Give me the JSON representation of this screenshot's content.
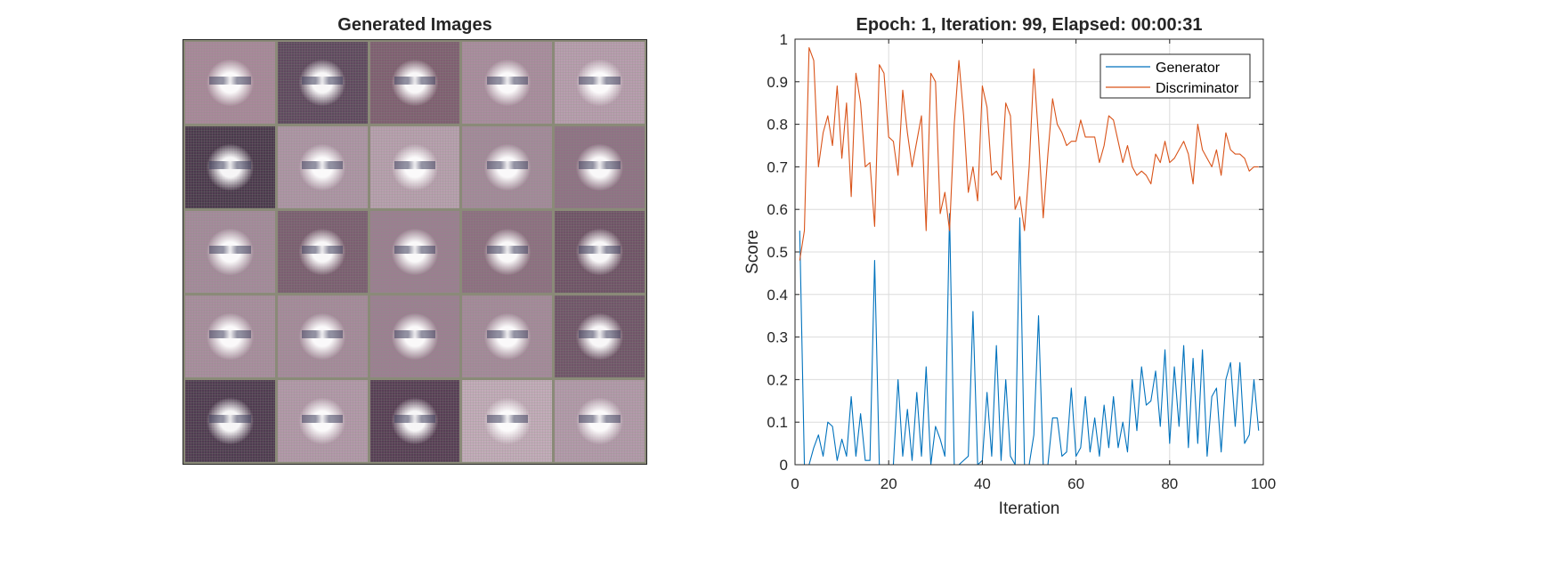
{
  "left_panel": {
    "title": "Generated Images",
    "tiles": [
      {
        "tint": "#a88a9a",
        "face": "light"
      },
      {
        "tint": "#5e4a5e",
        "face": "bright"
      },
      {
        "tint": "#7e6070",
        "face": "bright"
      },
      {
        "tint": "#a98e9e",
        "face": "light"
      },
      {
        "tint": "#b79fae",
        "face": "light"
      },
      {
        "tint": "#4a3a4c",
        "face": "bright"
      },
      {
        "tint": "#ad96a5",
        "face": "light"
      },
      {
        "tint": "#b7a1ae",
        "face": "light"
      },
      {
        "tint": "#a38b9a",
        "face": "light"
      },
      {
        "tint": "#8e7384",
        "face": "light"
      },
      {
        "tint": "#a48c9b",
        "face": "light"
      },
      {
        "tint": "#7a5f70",
        "face": "light"
      },
      {
        "tint": "#9a8090",
        "face": "light"
      },
      {
        "tint": "#8c7080",
        "face": "light"
      },
      {
        "tint": "#6e5466",
        "face": "bright"
      },
      {
        "tint": "#a88f9e",
        "face": "light"
      },
      {
        "tint": "#a58c9b",
        "face": "light"
      },
      {
        "tint": "#9b8191",
        "face": "light"
      },
      {
        "tint": "#a48b9a",
        "face": "light"
      },
      {
        "tint": "#6f5668",
        "face": "bright"
      },
      {
        "tint": "#4e3c50",
        "face": "bright"
      },
      {
        "tint": "#b29aa9",
        "face": "light"
      },
      {
        "tint": "#563f54",
        "face": "bright"
      },
      {
        "tint": "#c2adb9",
        "face": "light"
      },
      {
        "tint": "#b29baa",
        "face": "light"
      }
    ]
  },
  "chart_data": {
    "type": "line",
    "title": "Epoch: 1, Iteration: 99, Elapsed: 00:00:31",
    "xlabel": "Iteration",
    "ylabel": "Score",
    "xlim": [
      0,
      100
    ],
    "ylim": [
      0,
      1
    ],
    "xticks": [
      "0",
      "20",
      "40",
      "60",
      "80",
      "100"
    ],
    "yticks": [
      "0",
      "0.1",
      "0.2",
      "0.3",
      "0.4",
      "0.5",
      "0.6",
      "0.7",
      "0.8",
      "0.9",
      "1"
    ],
    "grid": true,
    "legend_position": "top-right",
    "series": [
      {
        "name": "Generator",
        "color": "#0072BD",
        "x": [
          1,
          2,
          3,
          4,
          5,
          6,
          7,
          8,
          9,
          10,
          11,
          12,
          13,
          14,
          15,
          16,
          17,
          18,
          19,
          20,
          21,
          22,
          23,
          24,
          25,
          26,
          27,
          28,
          29,
          30,
          31,
          32,
          33,
          34,
          35,
          36,
          37,
          38,
          39,
          40,
          41,
          42,
          43,
          44,
          45,
          46,
          47,
          48,
          49,
          50,
          51,
          52,
          53,
          54,
          55,
          56,
          57,
          58,
          59,
          60,
          61,
          62,
          63,
          64,
          65,
          66,
          67,
          68,
          69,
          70,
          71,
          72,
          73,
          74,
          75,
          76,
          77,
          78,
          79,
          80,
          81,
          82,
          83,
          84,
          85,
          86,
          87,
          88,
          89,
          90,
          91,
          92,
          93,
          94,
          95,
          96,
          97,
          98,
          99
        ],
        "values": [
          0.55,
          0,
          0,
          0.04,
          0.07,
          0.02,
          0.1,
          0.09,
          0.01,
          0.06,
          0.02,
          0.16,
          0.02,
          0.12,
          0.01,
          0.01,
          0.48,
          0,
          0,
          0,
          0,
          0.2,
          0.02,
          0.13,
          0.01,
          0.17,
          0.02,
          0.23,
          0,
          0.09,
          0.06,
          0.02,
          0.59,
          0,
          0,
          0.01,
          0.02,
          0.36,
          0,
          0.01,
          0.17,
          0.02,
          0.28,
          0.01,
          0.2,
          0.02,
          0,
          0.58,
          0,
          0,
          0.07,
          0.35,
          0,
          0,
          0.11,
          0.11,
          0.02,
          0.03,
          0.18,
          0.02,
          0.04,
          0.16,
          0.03,
          0.11,
          0.02,
          0.14,
          0.04,
          0.16,
          0.04,
          0.1,
          0.03,
          0.2,
          0.08,
          0.23,
          0.14,
          0.15,
          0.22,
          0.09,
          0.27,
          0.05,
          0.23,
          0.09,
          0.28,
          0.04,
          0.25,
          0.05,
          0.27,
          0.02,
          0.16,
          0.18,
          0.03,
          0.2,
          0.24,
          0.09,
          0.24,
          0.05,
          0.07,
          0.2,
          0.08
        ],
        "label_note": ""
      },
      {
        "name": "Discriminator",
        "color": "#D95319",
        "x": [
          1,
          2,
          3,
          4,
          5,
          6,
          7,
          8,
          9,
          10,
          11,
          12,
          13,
          14,
          15,
          16,
          17,
          18,
          19,
          20,
          21,
          22,
          23,
          24,
          25,
          26,
          27,
          28,
          29,
          30,
          31,
          32,
          33,
          34,
          35,
          36,
          37,
          38,
          39,
          40,
          41,
          42,
          43,
          44,
          45,
          46,
          47,
          48,
          49,
          50,
          51,
          52,
          53,
          54,
          55,
          56,
          57,
          58,
          59,
          60,
          61,
          62,
          63,
          64,
          65,
          66,
          67,
          68,
          69,
          70,
          71,
          72,
          73,
          74,
          75,
          76,
          77,
          78,
          79,
          80,
          81,
          82,
          83,
          84,
          85,
          86,
          87,
          88,
          89,
          90,
          91,
          92,
          93,
          94,
          95,
          96,
          97,
          98,
          99
        ],
        "values": [
          0.48,
          0.55,
          0.98,
          0.95,
          0.7,
          0.78,
          0.82,
          0.75,
          0.89,
          0.72,
          0.85,
          0.63,
          0.92,
          0.85,
          0.7,
          0.71,
          0.56,
          0.94,
          0.92,
          0.77,
          0.76,
          0.68,
          0.88,
          0.78,
          0.7,
          0.76,
          0.82,
          0.55,
          0.92,
          0.9,
          0.59,
          0.64,
          0.55,
          0.8,
          0.95,
          0.82,
          0.64,
          0.7,
          0.62,
          0.89,
          0.84,
          0.68,
          0.69,
          0.67,
          0.85,
          0.82,
          0.6,
          0.63,
          0.55,
          0.7,
          0.93,
          0.77,
          0.58,
          0.73,
          0.86,
          0.8,
          0.78,
          0.75,
          0.76,
          0.76,
          0.81,
          0.77,
          0.77,
          0.77,
          0.71,
          0.75,
          0.82,
          0.81,
          0.76,
          0.71,
          0.75,
          0.7,
          0.68,
          0.69,
          0.68,
          0.66,
          0.73,
          0.71,
          0.76,
          0.71,
          0.72,
          0.74,
          0.76,
          0.73,
          0.66,
          0.8,
          0.74,
          0.72,
          0.7,
          0.74,
          0.68,
          0.78,
          0.74,
          0.73,
          0.73,
          0.72,
          0.69,
          0.7,
          0.7
        ]
      }
    ]
  }
}
